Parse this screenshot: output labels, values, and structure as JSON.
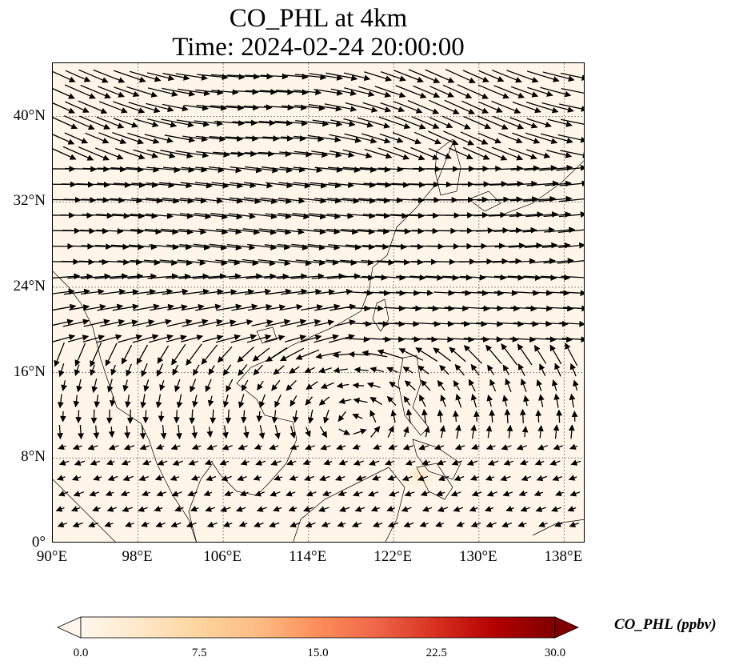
{
  "title": {
    "line1": "CO_PHL at 4km",
    "line2": "Time: 2024-02-24 20:00:00"
  },
  "map": {
    "lon_range": [
      90,
      140
    ],
    "lat_range": [
      0,
      45
    ],
    "y_ticks": [
      {
        "label": "40°N",
        "value": 40
      },
      {
        "label": "32°N",
        "value": 32
      },
      {
        "label": "24°N",
        "value": 24
      },
      {
        "label": "16°N",
        "value": 16
      },
      {
        "label": "8°N",
        "value": 8
      },
      {
        "label": "0°",
        "value": 0
      }
    ],
    "x_ticks": [
      {
        "label": "90°E",
        "value": 90
      },
      {
        "label": "98°E",
        "value": 98
      },
      {
        "label": "106°E",
        "value": 106
      },
      {
        "label": "114°E",
        "value": 114
      },
      {
        "label": "122°E",
        "value": 122
      },
      {
        "label": "130°E",
        "value": 130
      },
      {
        "label": "138°E",
        "value": 138
      }
    ],
    "gridlines": true,
    "background_color": "#fff5e8",
    "hotspot": {
      "lon": 124.5,
      "lat": 6.3,
      "value_ppbv": 3
    }
  },
  "colorbar": {
    "label": "CO_PHL (ppbv)",
    "ticks": [
      "0.0",
      "7.5",
      "15.0",
      "22.5",
      "30.0"
    ],
    "range": [
      0,
      30
    ],
    "colormap": [
      "#fff7ec",
      "#fee8c8",
      "#fdd49e",
      "#fdbb84",
      "#fc8d59",
      "#ef6548",
      "#d7301f",
      "#b30000",
      "#7f0000"
    ]
  }
}
